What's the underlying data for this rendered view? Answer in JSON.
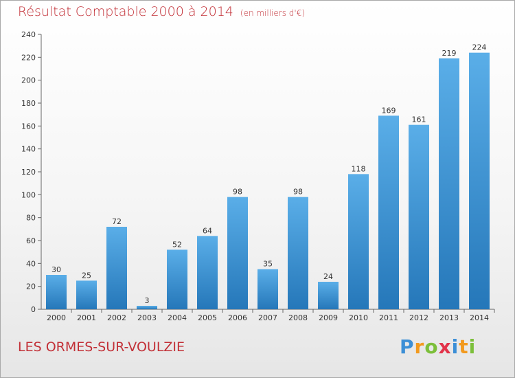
{
  "header": {
    "title": "Résultat Comptable 2000 à 2014",
    "subtitle": "(en milliers d'€)"
  },
  "footer": {
    "commune": "LES ORMES-SUR-VOULZIE",
    "logo_letters": [
      "P",
      "r",
      "o",
      "x",
      "i",
      "t",
      "i"
    ]
  },
  "colors": {
    "title": "#c22f36",
    "bar_top": "#5aaee8",
    "bar_bottom": "#2577b9"
  },
  "chart_data": {
    "type": "bar",
    "categories": [
      "2000",
      "2001",
      "2002",
      "2003",
      "2004",
      "2005",
      "2006",
      "2007",
      "2008",
      "2009",
      "2010",
      "2011",
      "2012",
      "2013",
      "2014"
    ],
    "values": [
      30,
      25,
      72,
      3,
      52,
      64,
      98,
      35,
      98,
      24,
      118,
      169,
      161,
      219,
      224
    ],
    "ylim": [
      0,
      240
    ],
    "yticks": [
      0,
      20,
      40,
      60,
      80,
      100,
      120,
      140,
      160,
      180,
      200,
      220,
      240
    ],
    "grid": false,
    "legend": "none"
  }
}
